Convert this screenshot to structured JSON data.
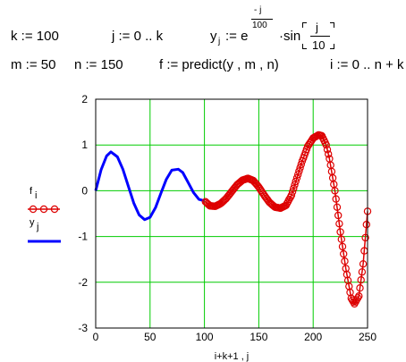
{
  "worksheet": {
    "row1": {
      "k_def": "k := 100",
      "j_def": "j := 0 .. k",
      "y_lhs": "y",
      "y_sub": "j",
      "y_assign": ":= e",
      "exp_num": "- j",
      "exp_den": "100",
      "times_sin": "·sin",
      "sin_num": "j",
      "sin_den": "10"
    },
    "row2": {
      "m_def": "m := 50",
      "n_def": "n := 150",
      "f_def": "f := predict(y , m , n)",
      "i_def": "i := 0 .. n + k"
    }
  },
  "chart_data": {
    "type": "line",
    "xlabel": "i+k+1 , j",
    "xlim": [
      0,
      250
    ],
    "ylim": [
      -3,
      2
    ],
    "xticks": [
      "0",
      "50",
      "100",
      "150",
      "200",
      "250"
    ],
    "yticks": [
      "2",
      "1",
      "0",
      "-1",
      "-2",
      "-3"
    ],
    "grid": true,
    "grid_color": "#00cc00",
    "legend_position": "left",
    "series": [
      {
        "name": "y",
        "subscript": "j",
        "color": "#0000ff",
        "style": "line",
        "x": [
          0,
          5,
          10,
          14,
          20,
          25,
          30,
          35,
          40,
          45,
          50,
          55,
          60,
          65,
          70,
          76,
          80,
          85,
          90,
          95,
          100
        ],
        "y": [
          0,
          0.46,
          0.76,
          0.85,
          0.74,
          0.47,
          0.1,
          -0.27,
          -0.53,
          -0.63,
          -0.58,
          -0.37,
          -0.05,
          0.25,
          0.45,
          0.47,
          0.4,
          0.18,
          -0.04,
          -0.19,
          -0.22
        ]
      },
      {
        "name": "f",
        "subscript": "i",
        "color": "#dd0000",
        "style": "line-circle",
        "x": [
          101,
          105,
          110,
          115,
          120,
          125,
          130,
          135,
          140,
          145,
          150,
          155,
          160,
          165,
          170,
          175,
          180,
          185,
          190,
          195,
          200,
          205,
          208,
          212,
          215,
          220,
          225,
          230,
          235,
          238,
          242,
          246,
          250
        ],
        "y": [
          -0.24,
          -0.33,
          -0.34,
          -0.28,
          -0.17,
          -0.02,
          0.13,
          0.23,
          0.27,
          0.22,
          0.08,
          -0.1,
          -0.26,
          -0.36,
          -0.38,
          -0.32,
          -0.1,
          0.28,
          0.65,
          0.97,
          1.15,
          1.22,
          1.2,
          1.0,
          0.7,
          0.0,
          -0.9,
          -1.7,
          -2.35,
          -2.47,
          -2.3,
          -1.6,
          -0.45
        ]
      }
    ]
  }
}
